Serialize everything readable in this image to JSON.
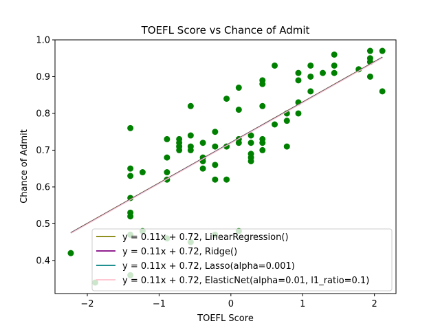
{
  "chart_data": {
    "type": "scatter",
    "title": "TOEFL Score vs Chance of Admit",
    "xlabel": "TOEFL Score",
    "ylabel": "Chance of Admit",
    "xlim": [
      -2.45,
      2.3
    ],
    "ylim": [
      0.31,
      1.0
    ],
    "xticks": [
      -2,
      -1,
      0,
      1,
      2
    ],
    "yticks": [
      0.4,
      0.5,
      0.6,
      0.7,
      0.8,
      0.9,
      1.0
    ],
    "xtick_labels": [
      "−2",
      "−1",
      "0",
      "1",
      "2"
    ],
    "ytick_labels": [
      "0.4",
      "0.5",
      "0.6",
      "0.7",
      "0.8",
      "0.9",
      "1.0"
    ],
    "grid": false,
    "legend_position": "lower-right",
    "points": {
      "color": "#008000",
      "x": [
        -2.23,
        -1.89,
        -1.4,
        -1.4,
        -1.4,
        -1.4,
        -1.4,
        -1.4,
        -1.4,
        -1.4,
        -1.23,
        -1.23,
        -0.89,
        -0.89,
        -0.89,
        -0.89,
        -0.89,
        -0.72,
        -0.72,
        -0.72,
        -0.72,
        -0.56,
        -0.56,
        -0.56,
        -0.56,
        -0.56,
        -0.39,
        -0.39,
        -0.39,
        -0.39,
        -0.22,
        -0.22,
        -0.22,
        -0.22,
        -0.22,
        -0.06,
        -0.06,
        -0.06,
        0.11,
        0.11,
        0.11,
        0.11,
        0.11,
        0.28,
        0.28,
        0.28,
        0.28,
        0.28,
        0.44,
        0.44,
        0.44,
        0.44,
        0.44,
        0.44,
        0.61,
        0.61,
        0.78,
        0.78,
        0.78,
        0.94,
        0.94,
        0.94,
        0.94,
        1.11,
        1.11,
        1.11,
        1.28,
        1.44,
        1.44,
        1.44,
        1.78,
        1.94,
        1.94,
        1.94,
        1.94,
        2.11,
        2.11
      ],
      "y": [
        0.42,
        0.34,
        0.76,
        0.65,
        0.63,
        0.57,
        0.53,
        0.52,
        0.47,
        0.36,
        0.64,
        0.48,
        0.73,
        0.68,
        0.64,
        0.62,
        0.46,
        0.73,
        0.72,
        0.71,
        0.7,
        0.82,
        0.74,
        0.71,
        0.7,
        0.45,
        0.72,
        0.68,
        0.67,
        0.65,
        0.75,
        0.71,
        0.66,
        0.62,
        0.47,
        0.84,
        0.71,
        0.62,
        0.87,
        0.81,
        0.73,
        0.72,
        0.48,
        0.74,
        0.72,
        0.69,
        0.68,
        0.67,
        0.89,
        0.88,
        0.82,
        0.73,
        0.72,
        0.7,
        0.93,
        0.77,
        0.8,
        0.78,
        0.71,
        0.91,
        0.89,
        0.83,
        0.8,
        0.93,
        0.9,
        0.86,
        0.91,
        0.96,
        0.93,
        0.91,
        0.92,
        0.97,
        0.95,
        0.94,
        0.9,
        0.97,
        0.86
      ]
    },
    "lines": [
      {
        "name": "y = 0.11x + 0.72, LinearRegression()",
        "color": "#808000",
        "slope": 0.11,
        "intercept": 0.72,
        "x": [
          -2.23,
          2.11
        ]
      },
      {
        "name": "y = 0.11x + 0.72, Ridge()",
        "color": "#800080",
        "slope": 0.11,
        "intercept": 0.72,
        "x": [
          -2.23,
          2.11
        ]
      },
      {
        "name": "y = 0.11x + 0.72, Lasso(alpha=0.001)",
        "color": "#008080",
        "slope": 0.11,
        "intercept": 0.72,
        "x": [
          -2.23,
          2.11
        ]
      },
      {
        "name": "y = 0.11x + 0.72, ElasticNet(alpha=0.01, l1_ratio=0.1)",
        "color": "#ffc0cb",
        "slope": 0.11,
        "intercept": 0.72,
        "x": [
          -2.23,
          2.11
        ]
      }
    ]
  }
}
